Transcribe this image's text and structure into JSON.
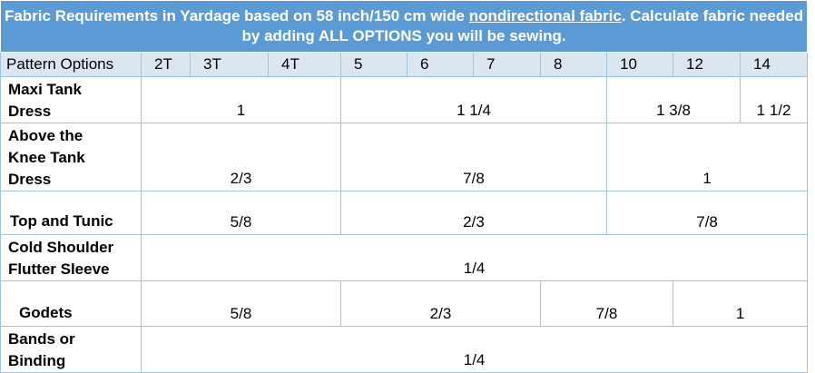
{
  "table": {
    "title": {
      "before": "Fabric Requirements in Yardage based on 58 inch/150 cm wide ",
      "underlined": "nondirectional fabric",
      "after": ". Calculate fabric needed by adding ALL OPTIONS you will be sewing."
    },
    "header": [
      "Pattern Options",
      "2T",
      "3T",
      "4T",
      "5",
      "6",
      "7",
      "8",
      "10",
      "12",
      "14"
    ],
    "rows": [
      {
        "label": "Maxi Tank Dress",
        "cells": [
          "1",
          "1 1/4",
          "1 3/8",
          "1 1/2"
        ]
      },
      {
        "label": "Above the Knee Tank Dress",
        "cells": [
          "2/3",
          "7/8",
          "1"
        ]
      },
      {
        "label": "Top and Tunic",
        "cells": [
          "5/8",
          "2/3",
          "7/8"
        ]
      },
      {
        "label": "Cold Shoulder Flutter Sleeve",
        "cells": [
          "1/4"
        ]
      },
      {
        "label": "Godets",
        "cells": [
          "5/8",
          "2/3",
          "7/8",
          "1"
        ]
      },
      {
        "label": "Bands or Binding",
        "cells": [
          "1/4"
        ]
      }
    ]
  }
}
